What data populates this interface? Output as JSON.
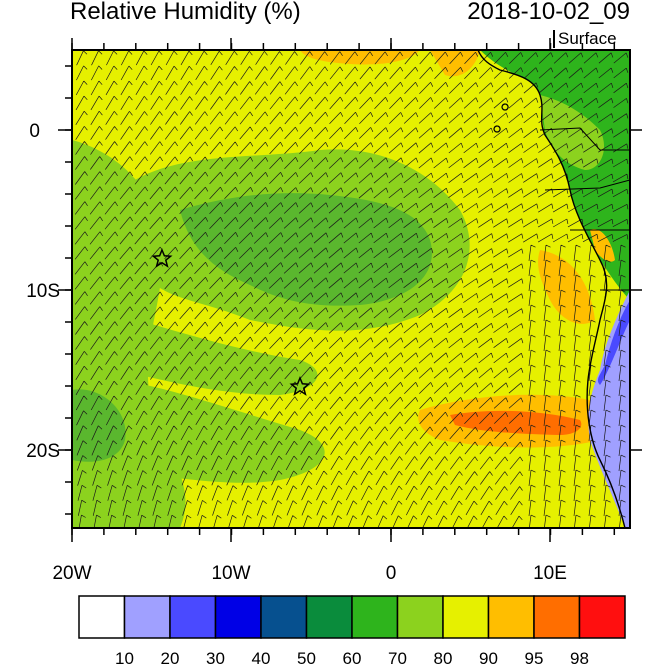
{
  "header": {
    "title": "Relative Humidity (%)",
    "datetime": "2018-10-02_09",
    "level": "Surface"
  },
  "axes": {
    "x_labels": [
      "20W",
      "10W",
      "0",
      "10E"
    ],
    "y_labels": [
      "0",
      "10S",
      "20S"
    ]
  },
  "legend": {
    "labels": [
      "10",
      "20",
      "30",
      "40",
      "50",
      "60",
      "70",
      "80",
      "90",
      "95",
      "98"
    ],
    "colors": [
      "#ffffff",
      "#a0a0ff",
      "#4a4aff",
      "#0000e6",
      "#06508f",
      "#0a8c3c",
      "#2eb41c",
      "#8cd21e",
      "#e6f000",
      "#ffbe00",
      "#ff6e00",
      "#ff0f0f"
    ]
  },
  "markers": {
    "symbol": "star",
    "count": 2
  },
  "map": {
    "type": "filled-contour",
    "vectors": "wind-barbs",
    "lon_range": [
      "20W",
      "15E"
    ],
    "lat_range": [
      "25S",
      "5N"
    ],
    "colors": {
      "ocean_main": "#e6f000",
      "dry_band": "#8cd21e",
      "core_dry": "#5ab72e",
      "moist": "#ffbe00",
      "very_moist": "#ff6e00",
      "coastal_dry": "#4a4aff",
      "land_dry": "#a0a0ff",
      "land_green": "#2eb41c"
    }
  }
}
